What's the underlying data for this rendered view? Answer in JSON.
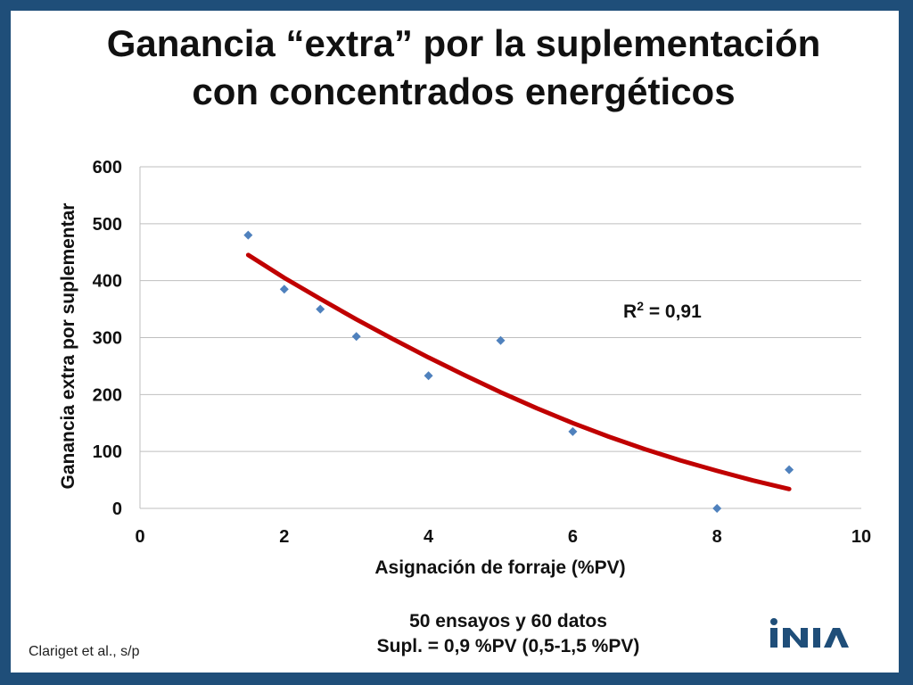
{
  "slide": {
    "title_line1": "Ganancia “extra” por la suplementación",
    "title_line2": "con concentrados energéticos",
    "note_line1": "50 ensayos y 60 datos",
    "note_line2": "Supl. = 0,9 %PV (0,5-1,5 %PV)",
    "source": "Clariget et al., s/p",
    "logo_text": "INIA"
  },
  "colors": {
    "border": "#1f4e79",
    "points": "#4f81bd",
    "trendline": "#c00000",
    "grid": "#bfbfbf"
  },
  "chart_data": {
    "type": "scatter",
    "xlabel": "Asignación de forraje (%PV)",
    "ylabel": "Ganancia extra por suplementar",
    "xlim": [
      0,
      10
    ],
    "ylim": [
      0,
      600
    ],
    "x_ticks": [
      0,
      2,
      4,
      6,
      8,
      10
    ],
    "y_ticks": [
      0,
      100,
      200,
      300,
      400,
      500,
      600
    ],
    "grid": true,
    "series": [
      {
        "x": [
          1.5,
          2,
          2.5,
          3,
          4,
          5,
          6,
          8,
          9
        ],
        "y": [
          480,
          385,
          350,
          302,
          233,
          295,
          135,
          0,
          68
        ]
      }
    ],
    "trendline": {
      "type": "polynomial",
      "x": [
        1.5,
        2,
        2.5,
        3,
        3.5,
        4,
        4.5,
        5,
        5.5,
        6,
        6.5,
        7,
        7.5,
        8,
        8.5,
        9
      ],
      "y": [
        445,
        405,
        368,
        332,
        298,
        265,
        234,
        204,
        176,
        150,
        126,
        104,
        84,
        66,
        49,
        34
      ]
    },
    "annotation": "R2 = 0,91",
    "annotation_x": 6.7,
    "annotation_y": 335
  }
}
